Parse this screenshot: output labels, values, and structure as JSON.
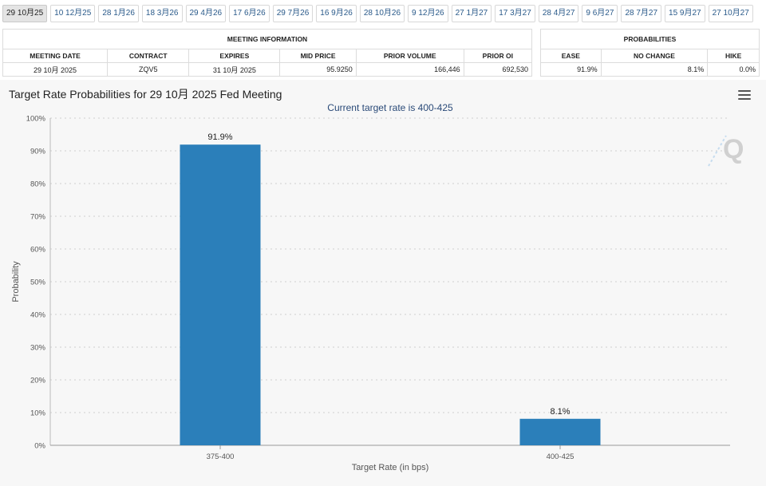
{
  "tabs": [
    {
      "label": "29 10月25",
      "active": true
    },
    {
      "label": "10 12月25"
    },
    {
      "label": "28 1月26"
    },
    {
      "label": "18 3月26"
    },
    {
      "label": "29 4月26"
    },
    {
      "label": "17 6月26"
    },
    {
      "label": "29 7月26"
    },
    {
      "label": "16 9月26"
    },
    {
      "label": "28 10月26"
    },
    {
      "label": "9 12月26"
    },
    {
      "label": "27 1月27"
    },
    {
      "label": "17 3月27"
    },
    {
      "label": "28 4月27"
    },
    {
      "label": "9 6月27"
    },
    {
      "label": "28 7月27"
    },
    {
      "label": "15 9月27"
    },
    {
      "label": "27 10月27"
    }
  ],
  "meeting_info": {
    "heading": "MEETING INFORMATION",
    "columns": [
      "MEETING DATE",
      "CONTRACT",
      "EXPIRES",
      "MID PRICE",
      "PRIOR VOLUME",
      "PRIOR OI"
    ],
    "row": [
      "29 10月 2025",
      "ZQV5",
      "31 10月 2025",
      "95.9250",
      "166,446",
      "692,530"
    ]
  },
  "probabilities": {
    "heading": "PROBABILITIES",
    "columns": [
      "EASE",
      "NO CHANGE",
      "HIKE"
    ],
    "row": [
      "91.9%",
      "8.1%",
      "0.0%"
    ]
  },
  "chart_data": {
    "type": "bar",
    "title": "Target Rate Probabilities for 29 10月 2025 Fed Meeting",
    "subtitle": "Current target rate is 400-425",
    "xlabel": "Target Rate (in bps)",
    "ylabel": "Probability",
    "categories": [
      "375-400",
      "400-425"
    ],
    "values": [
      91.9,
      8.1
    ],
    "data_labels": [
      "91.9%",
      "8.1%"
    ],
    "ylim": [
      0,
      100
    ],
    "yticks": [
      0,
      10,
      20,
      30,
      40,
      50,
      60,
      70,
      80,
      90,
      100
    ],
    "ytick_suffix": "%",
    "grid": true,
    "bar_color": "#2b7fba"
  }
}
